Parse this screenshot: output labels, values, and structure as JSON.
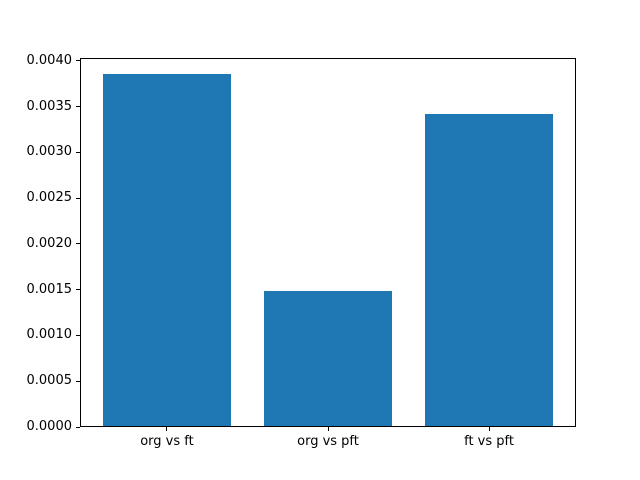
{
  "chart_data": {
    "type": "bar",
    "categories": [
      "org vs ft",
      "org vs pft",
      "ft vs pft"
    ],
    "values": [
      0.00385,
      0.00149,
      0.00342
    ],
    "title": "",
    "xlabel": "",
    "ylabel": "",
    "ylim": [
      0,
      0.00403
    ],
    "xlim": [
      -0.54,
      2.54
    ],
    "bar_width_units": 0.8,
    "yticks": [
      0.0,
      0.0005,
      0.001,
      0.0015,
      0.002,
      0.0025,
      0.003,
      0.0035,
      0.004
    ],
    "ytick_labels": [
      "0.0000",
      "0.0005",
      "0.0010",
      "0.0015",
      "0.0020",
      "0.0025",
      "0.0030",
      "0.0035",
      "0.0040"
    ],
    "grid": "off",
    "legend": "none",
    "colors": {
      "bar": "#1f77b4",
      "spine": "#000000",
      "text": "#000000",
      "background": "#ffffff"
    }
  }
}
